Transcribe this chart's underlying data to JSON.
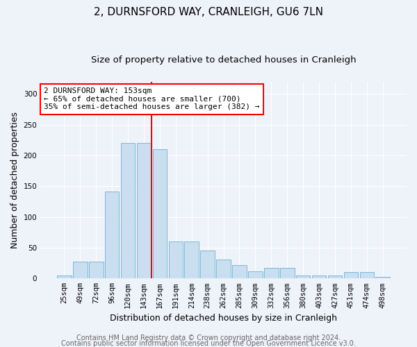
{
  "title": "2, DURNSFORD WAY, CRANLEIGH, GU6 7LN",
  "subtitle": "Size of property relative to detached houses in Cranleigh",
  "xlabel": "Distribution of detached houses by size in Cranleigh",
  "ylabel": "Number of detached properties",
  "categories": [
    "25sqm",
    "49sqm",
    "72sqm",
    "96sqm",
    "120sqm",
    "143sqm",
    "167sqm",
    "191sqm",
    "214sqm",
    "238sqm",
    "262sqm",
    "285sqm",
    "309sqm",
    "332sqm",
    "356sqm",
    "380sqm",
    "403sqm",
    "427sqm",
    "451sqm",
    "474sqm",
    "498sqm"
  ],
  "values": [
    5,
    27,
    27,
    141,
    220,
    220,
    210,
    60,
    60,
    45,
    31,
    22,
    12,
    17,
    17,
    5,
    5,
    5,
    10,
    10,
    3
  ],
  "bar_color": "#c9dff0",
  "bar_edge_color": "#7ab8d9",
  "vline_x": 5.5,
  "vline_color": "red",
  "vline_lw": 1.5,
  "annotation_text": "2 DURNSFORD WAY: 153sqm\n← 65% of detached houses are smaller (700)\n35% of semi-detached houses are larger (382) →",
  "annotation_box_color": "white",
  "annotation_box_edge": "red",
  "ylim": [
    0,
    320
  ],
  "yticks": [
    0,
    50,
    100,
    150,
    200,
    250,
    300
  ],
  "footer_line1": "Contains HM Land Registry data © Crown copyright and database right 2024.",
  "footer_line2": "Contains public sector information licensed under the Open Government Licence v3.0.",
  "bg_color": "#eef2f9",
  "plot_bg_color": "#eef2f9",
  "title_fontsize": 11,
  "subtitle_fontsize": 9.5,
  "axis_label_fontsize": 9,
  "tick_fontsize": 7.5,
  "footer_fontsize": 7,
  "annotation_fontsize": 8
}
